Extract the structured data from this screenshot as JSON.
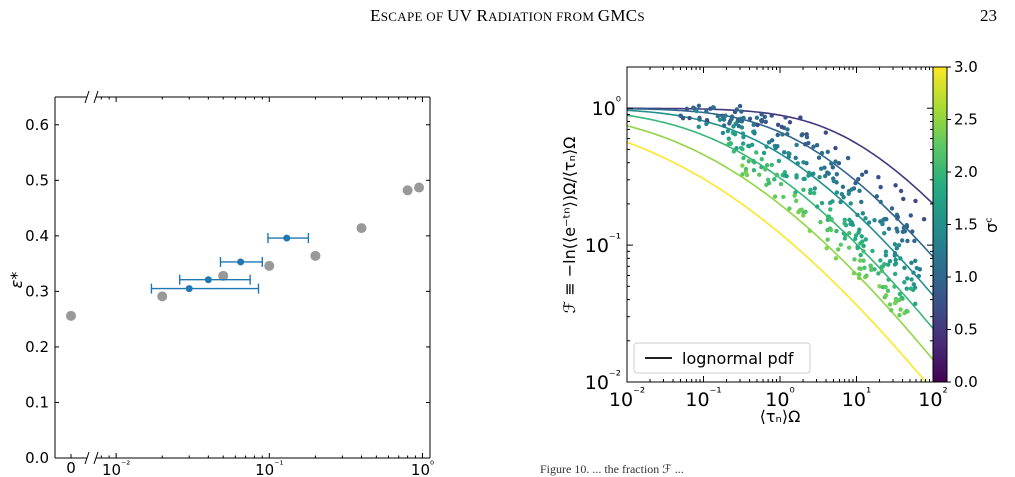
{
  "header": {
    "runhead_big1": "E",
    "runhead_small1": "SCAPE OF ",
    "runhead_big2": "UV R",
    "runhead_small2": "ADIATION FROM ",
    "runhead_big3": "GMC",
    "runhead_small3": "S",
    "page_number": "23"
  },
  "caption": "Figure 10. ... the fraction ℱ ...",
  "chart_data": [
    {
      "type": "scatter",
      "title": "",
      "xlabel": "",
      "ylabel": "ε*",
      "xscale": "broken-log",
      "ylim": [
        0.0,
        0.65
      ],
      "yticks": [
        "0.0",
        "0.1",
        "0.2",
        "0.3",
        "0.4",
        "0.5",
        "0.6"
      ],
      "xticks": [
        "0",
        "10⁻²",
        "10⁻¹",
        "10⁰"
      ],
      "series": [
        {
          "color": "#999999",
          "points": [
            {
              "x": 0,
              "y": 0.256
            },
            {
              "x": 0.02,
              "y": 0.291
            },
            {
              "x": 0.05,
              "y": 0.328
            },
            {
              "x": 0.1,
              "y": 0.346
            },
            {
              "x": 0.2,
              "y": 0.364
            },
            {
              "x": 0.4,
              "y": 0.414
            },
            {
              "x": 0.8,
              "y": 0.482
            },
            {
              "x": 0.95,
              "y": 0.487
            }
          ]
        },
        {
          "color": "#1f77b4",
          "points": [
            {
              "x": 0.03,
              "y": 0.305,
              "xerr": [
                0.017,
                0.085
              ]
            },
            {
              "x": 0.04,
              "y": 0.321,
              "xerr": [
                0.026,
                0.075
              ]
            },
            {
              "x": 0.065,
              "y": 0.353,
              "xerr": [
                0.048,
                0.09
              ]
            },
            {
              "x": 0.13,
              "y": 0.396,
              "xerr": [
                0.098,
                0.18
              ]
            }
          ]
        }
      ]
    },
    {
      "type": "line",
      "title": "",
      "xlabel": "⟨τₙ⟩Ω",
      "ylabel": "ℱ ≡ −ln(⟨e⁻ᵗⁿ⟩)Ω/⟨τₙ⟩Ω",
      "xscale": "log",
      "yscale": "log",
      "xlim": [
        0.01,
        100
      ],
      "ylim": [
        0.01,
        2.0
      ],
      "xticks": [
        "10⁻²",
        "10⁻¹",
        "10⁰",
        "10¹",
        "10²"
      ],
      "yticks": [
        "10⁻²",
        "10⁻¹",
        "10⁰"
      ],
      "legend": {
        "label": "lognormal pdf",
        "position": "lower-left"
      },
      "colorbar": {
        "label": "σᶜ",
        "range": [
          0.0,
          3.0
        ],
        "ticks": [
          "0.0",
          "0.5",
          "1.0",
          "1.5",
          "2.0",
          "2.5",
          "3.0"
        ],
        "colormap": "viridis"
      },
      "curves_sigma": [
        0.5,
        1.0,
        1.5,
        2.0,
        2.5,
        3.0
      ],
      "scatter_clusters": [
        {
          "sigma": 0.9,
          "x_range": [
            0.05,
            80
          ],
          "offset": 1.0
        },
        {
          "sigma": 1.3,
          "x_range": [
            0.08,
            80
          ],
          "offset": 1.0
        },
        {
          "sigma": 1.8,
          "x_range": [
            0.2,
            60
          ],
          "offset": 1.0
        },
        {
          "sigma": 2.2,
          "x_range": [
            0.3,
            50
          ],
          "offset": 1.0
        }
      ]
    }
  ]
}
